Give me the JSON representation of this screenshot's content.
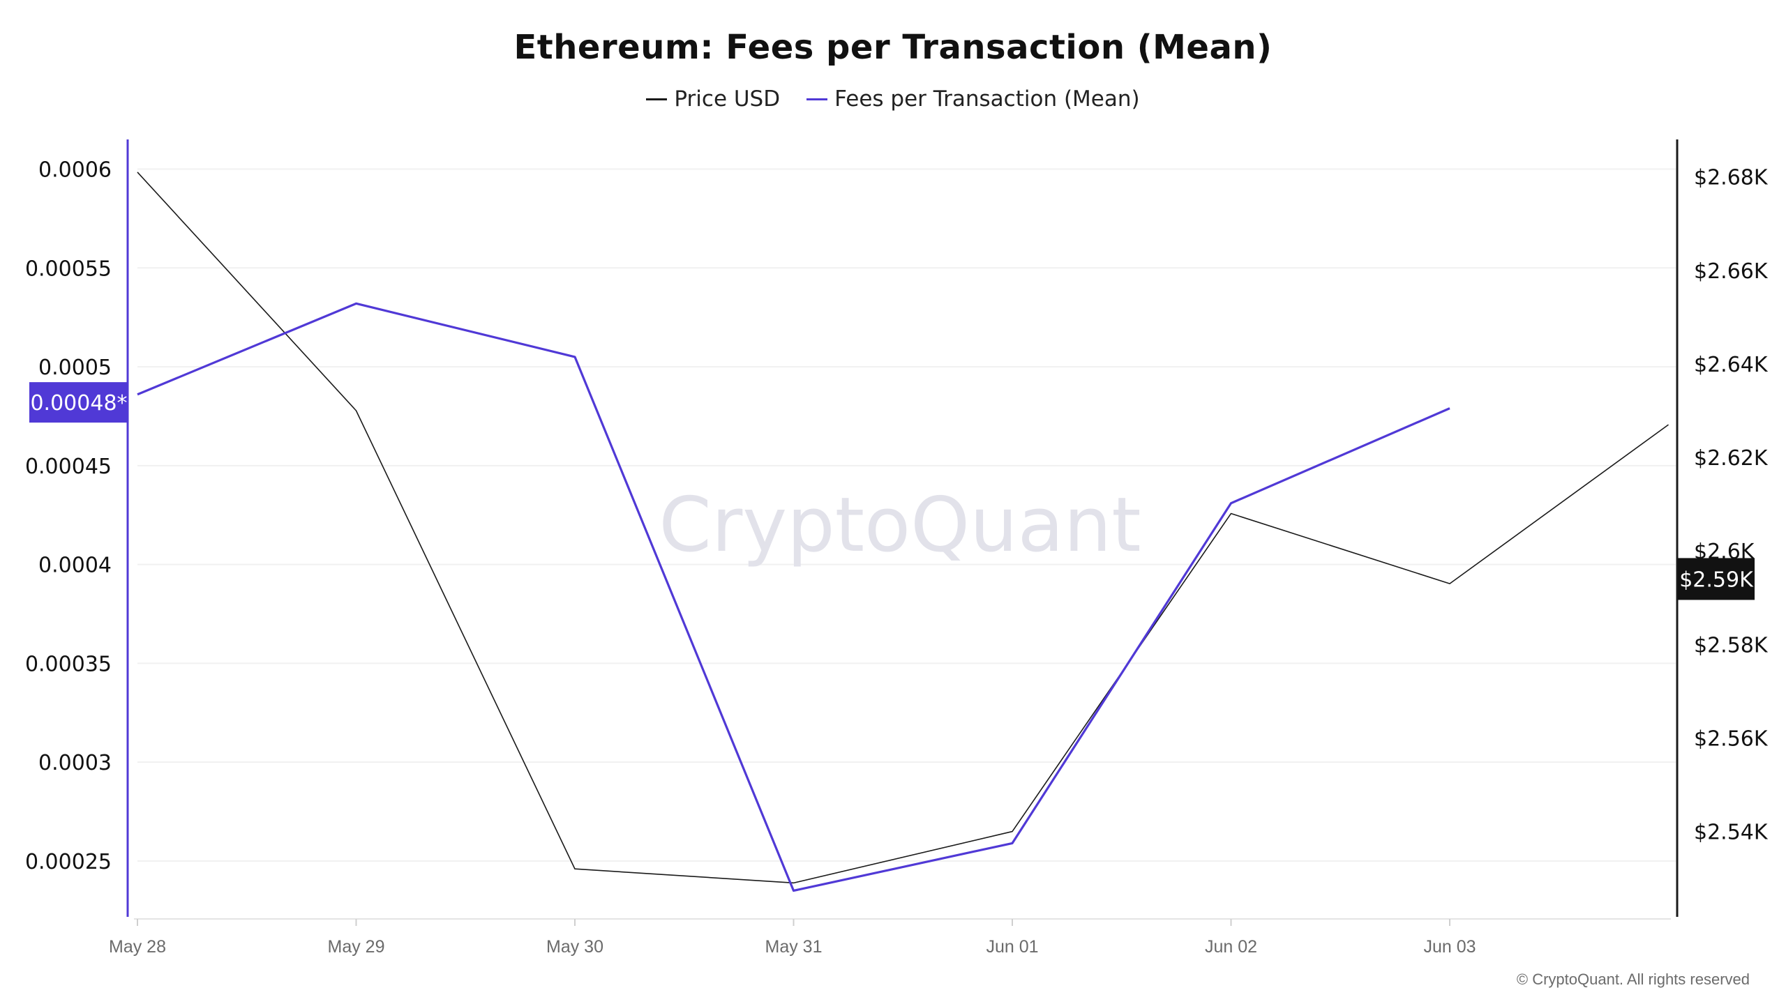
{
  "colors": {
    "price": "#1a1a1a",
    "fees": "#5039d6",
    "grid": "#f1f1f1",
    "price_badge_bg": "#121212",
    "fees_badge_bg": "#5039d6",
    "watermark": "#e2e2ea",
    "tick_text": "#111111",
    "x_tick_text": "#6b6b6b"
  },
  "watermark": "CryptoQuant",
  "copyright": "© CryptoQuant. All rights reserved",
  "chart_data": {
    "type": "line",
    "title": "Ethereum: Fees per Transaction (Mean)",
    "categories": [
      "May 28",
      "May 29",
      "May 30",
      "May 31",
      "Jun 01",
      "Jun 02",
      "Jun 03",
      ""
    ],
    "x_tick_labels": [
      "May 28",
      "May 29",
      "May 30",
      "May 31",
      "Jun 01",
      "Jun 02",
      "Jun 03"
    ],
    "series": [
      {
        "name": "Price USD",
        "axis": "right",
        "values": [
          2681,
          2630,
          2532,
          2529,
          2540,
          2608,
          2593,
          2627
        ]
      },
      {
        "name": "Fees per Transaction (Mean)",
        "axis": "left",
        "values": [
          0.000486,
          0.000532,
          0.000505,
          0.000235,
          0.000259,
          0.000431,
          0.000479,
          null
        ]
      }
    ],
    "y_left": {
      "ylim": [
        0.00022,
        0.000615
      ],
      "ticks": [
        0.0006,
        0.00055,
        0.0005,
        0.00045,
        0.0004,
        0.00035,
        0.0003,
        0.00025
      ],
      "tick_labels": [
        "0.0006",
        "0.00055",
        "0.0005",
        "0.00045",
        "0.0004",
        "0.00035",
        "0.0003",
        "0.00025"
      ],
      "current_label": "0.00048*",
      "current_value": 0.000482
    },
    "y_right": {
      "ylim": [
        2521,
        2688
      ],
      "ticks": [
        2680,
        2660,
        2640,
        2620,
        2600,
        2580,
        2560,
        2540
      ],
      "tick_labels": [
        "$2.68K",
        "$2.66K",
        "$2.64K",
        "$2.62K",
        "$2.6K",
        "$2.58K",
        "$2.56K",
        "$2.54K"
      ],
      "current_label": "$2.59K",
      "current_value": 2594
    },
    "grid": true,
    "legend": "top-center"
  }
}
